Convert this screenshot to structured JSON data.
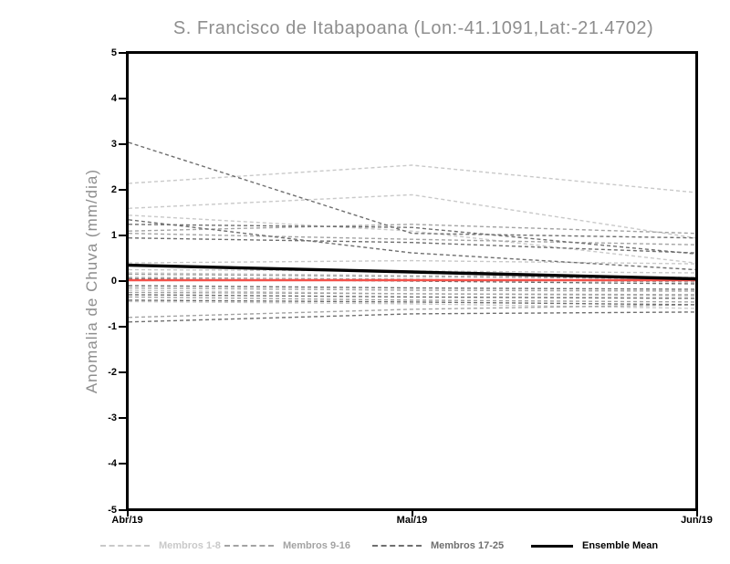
{
  "title": "S. Francisco de Itabapoana (Lon:-41.1091,Lat:-21.4702)",
  "axes": {
    "ylabel": "Anomalia de Chuva (mm/dia)",
    "yticks": [
      5,
      4,
      3,
      2,
      1,
      0,
      -1,
      -2,
      -3,
      -4,
      -5
    ],
    "xticks": [
      "Abr/19",
      "Mai/19",
      "Jun/19"
    ]
  },
  "legend": {
    "items": [
      {
        "label": "Membros 1-8",
        "color": "#c9c9c9",
        "style": "dashed"
      },
      {
        "label": "Membros 9-16",
        "color": "#a3a3a3",
        "style": "dashed"
      },
      {
        "label": "Membros 17-25",
        "color": "#6f6f6f",
        "style": "dashed"
      },
      {
        "label": "Ensemble Mean",
        "color": "#000000",
        "style": "solid"
      }
    ]
  },
  "colors": {
    "title_text": "#8e8e8e",
    "axis_text": "#000000",
    "members_1_8": "#c9c9c9",
    "members_9_16": "#a3a3a3",
    "members_17_25": "#6f6f6f",
    "ensemble_mean": "#000000",
    "reference_line": "#f4514a",
    "frame": "#000000",
    "background": "#ffffff"
  },
  "chart_data": {
    "type": "line",
    "title": "S. Francisco de Itabapoana (Lon:-41.1091,Lat:-21.4702)",
    "xlabel": "",
    "ylabel": "Anomalia de Chuva (mm/dia)",
    "ylim": [
      -5,
      5
    ],
    "grid": false,
    "legend_position": "bottom",
    "categories": [
      "Abr/19",
      "Mai/19",
      "Jun/19"
    ],
    "groups": [
      {
        "name": "Membros 1-8",
        "color": "#c9c9c9",
        "line_style": "dashed",
        "members": [
          [
            2.15,
            2.55,
            1.95
          ],
          [
            1.6,
            1.9,
            0.95
          ],
          [
            1.45,
            1.1,
            0.4
          ],
          [
            0.4,
            0.45,
            0.38
          ],
          [
            0.25,
            0.22,
            0.18
          ],
          [
            0.18,
            0.12,
            0.08
          ],
          [
            -0.2,
            -0.28,
            -0.33
          ],
          [
            -0.45,
            -0.5,
            -0.6
          ]
        ]
      },
      {
        "name": "Membros 9-16",
        "color": "#a3a3a3",
        "line_style": "dashed",
        "members": [
          [
            1.1,
            1.25,
            1.05
          ],
          [
            1.05,
            0.92,
            0.8
          ],
          [
            0.15,
            0.1,
            0.05
          ],
          [
            0.08,
            0.04,
            -0.02
          ],
          [
            -0.15,
            -0.2,
            -0.22
          ],
          [
            -0.25,
            -0.28,
            -0.3
          ],
          [
            -0.35,
            -0.42,
            -0.46
          ],
          [
            -0.8,
            -0.62,
            -0.52
          ]
        ]
      },
      {
        "name": "Membros 17-25",
        "color": "#6f6f6f",
        "line_style": "dashed",
        "members": [
          [
            3.05,
            1.05,
            0.95
          ],
          [
            1.35,
            0.62,
            0.25
          ],
          [
            1.25,
            1.18,
            0.6
          ],
          [
            0.95,
            0.85,
            0.62
          ],
          [
            0.05,
            0.0,
            -0.06
          ],
          [
            -0.1,
            -0.15,
            -0.18
          ],
          [
            -0.3,
            -0.35,
            -0.38
          ],
          [
            -0.42,
            -0.46,
            -0.52
          ],
          [
            -0.9,
            -0.72,
            -0.68
          ]
        ]
      }
    ],
    "ensemble_mean": {
      "name": "Ensemble Mean",
      "color": "#000000",
      "line_style": "solid",
      "values": [
        0.35,
        0.2,
        0.05
      ]
    },
    "reference_line": {
      "name": "zero-reference",
      "color": "#f4514a",
      "line_style": "solid",
      "values": [
        0.02,
        0.02,
        0.02
      ]
    }
  }
}
